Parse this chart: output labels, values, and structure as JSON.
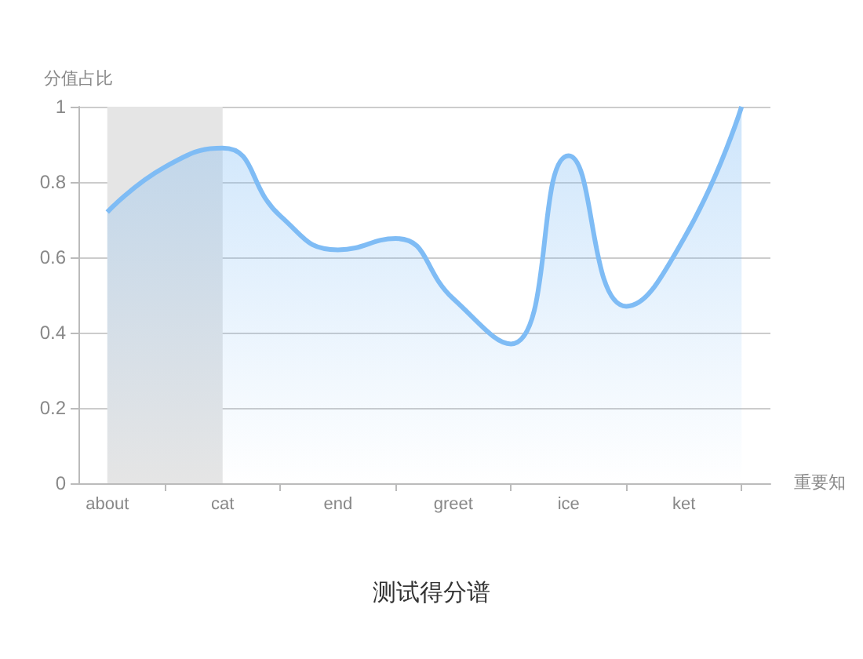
{
  "chart_data": {
    "type": "area",
    "title": "测试得分谱",
    "xlabel": "重要知",
    "ylabel": "分值占比",
    "categories": [
      "about",
      null,
      "cat",
      null,
      "end",
      null,
      "greet",
      null,
      "ice",
      null,
      "ket",
      null
    ],
    "series": [
      {
        "color": "#7fbcf5",
        "values": [
          0.72,
          0.84,
          0.89,
          0.71,
          0.62,
          0.65,
          0.49,
          0.37,
          0.87,
          0.47,
          0.65,
          1.0
        ]
      }
    ],
    "ylim": [
      0,
      1
    ],
    "yticks": [
      0,
      0.2,
      0.4,
      0.6,
      0.8,
      1
    ],
    "grid": "y",
    "marker": "none",
    "bands": [
      {
        "axis": "x",
        "from": "about",
        "to": "cat",
        "color": "#e5e5e5"
      }
    ]
  }
}
